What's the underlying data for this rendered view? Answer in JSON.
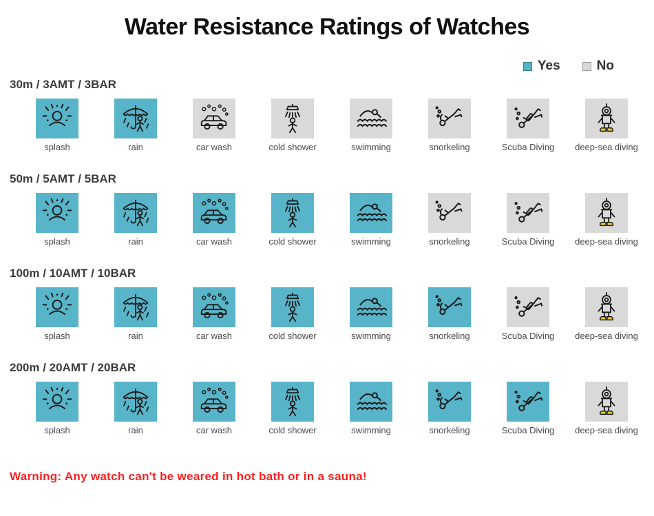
{
  "title": "Water Resistance Ratings of Watches",
  "legend": {
    "yes_label": "Yes",
    "no_label": "No"
  },
  "colors": {
    "yes": "#58b4c8",
    "no": "#d9d9d9",
    "warning_text": "#ff1d1d"
  },
  "activities": [
    {
      "id": "splash",
      "label": "splash"
    },
    {
      "id": "rain",
      "label": "rain"
    },
    {
      "id": "car-wash",
      "label": "car wash"
    },
    {
      "id": "cold-shower",
      "label": "cold shower"
    },
    {
      "id": "swimming",
      "label": "swimming"
    },
    {
      "id": "snorkeling",
      "label": "snorkeling"
    },
    {
      "id": "scuba-diving",
      "label": "Scuba Diving"
    },
    {
      "id": "deep-sea-diving",
      "label": "deep-sea diving"
    }
  ],
  "rows": [
    {
      "rating": "30m / 3AMT / 3BAR",
      "allowed": [
        true,
        true,
        false,
        false,
        false,
        false,
        false,
        false
      ]
    },
    {
      "rating": "50m / 5AMT / 5BAR",
      "allowed": [
        true,
        true,
        true,
        true,
        true,
        false,
        false,
        false
      ]
    },
    {
      "rating": "100m / 10AMT / 10BAR",
      "allowed": [
        true,
        true,
        true,
        true,
        true,
        true,
        false,
        false
      ]
    },
    {
      "rating": "200m / 20AMT / 20BAR",
      "allowed": [
        true,
        true,
        true,
        true,
        true,
        true,
        true,
        false
      ]
    }
  ],
  "warning": "Warning: Any watch can't be weared in hot bath or in a sauna!"
}
